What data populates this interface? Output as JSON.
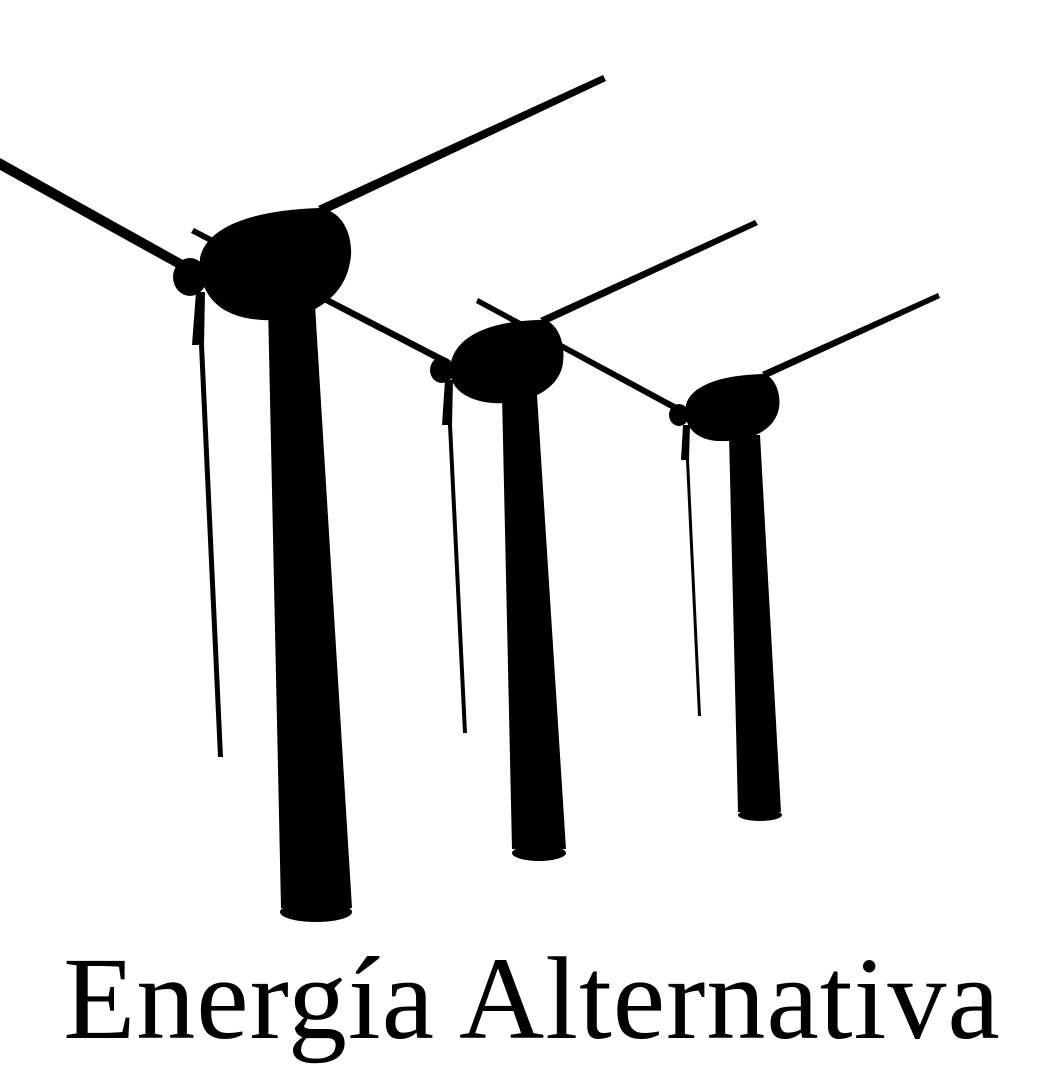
{
  "poster": {
    "title": "Energía Alternativa",
    "background_color": "#ffffff",
    "ink_color": "#000000",
    "illustration": {
      "subject": "wind-turbines",
      "turbines": [
        {
          "name": "turbine-large"
        },
        {
          "name": "turbine-medium"
        },
        {
          "name": "turbine-small"
        }
      ]
    }
  }
}
